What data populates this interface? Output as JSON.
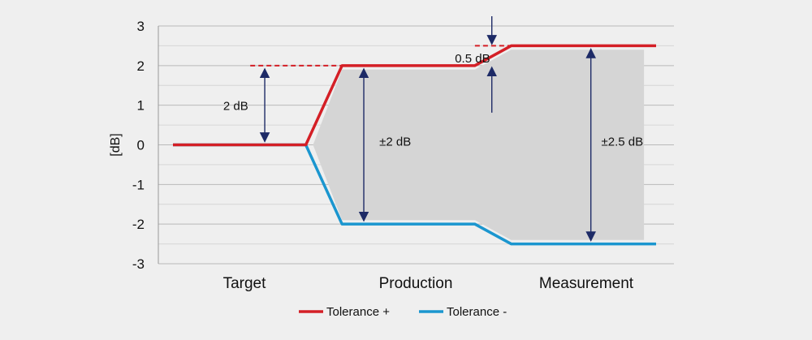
{
  "chart_data": {
    "type": "line",
    "title": "",
    "xlabel": "",
    "ylabel": "[dB]",
    "ylim": [
      -3,
      3
    ],
    "yticks": [
      3,
      2,
      1,
      0,
      -1,
      -2,
      -3
    ],
    "grid": true,
    "legend_position": "bottom-center",
    "categories": [
      "Target",
      "Production",
      "Measurement"
    ],
    "x_domain": [
      0,
      3
    ],
    "series": [
      {
        "name": "Tolerance +",
        "color": "#d41f26",
        "x": [
          0,
          0.55,
          0.7,
          1.25,
          1.4,
          2.0
        ],
        "y": [
          0,
          0,
          2,
          2,
          2.5,
          2.5
        ]
      },
      {
        "name": "Tolerance -",
        "color": "#1b96cf",
        "x": [
          0,
          0.55,
          0.7,
          1.25,
          1.4,
          2.0
        ],
        "y": [
          0,
          0,
          -2,
          -2,
          -2.5,
          -2.5
        ]
      }
    ],
    "shaded_band": {
      "color": "#d5d5d5",
      "upper": {
        "x": [
          0.58,
          0.7,
          1.25,
          1.4,
          1.95
        ],
        "y": [
          0,
          1.9,
          1.9,
          2.4,
          2.4
        ]
      },
      "lower": {
        "x": [
          0.58,
          0.7,
          1.25,
          1.4,
          1.95
        ],
        "y": [
          0,
          -1.9,
          -1.9,
          -2.4,
          -2.4
        ]
      }
    },
    "reference_lines": [
      {
        "x": [
          0.32,
          0.7
        ],
        "y": 2,
        "color": "#d41f26",
        "style": "dashed"
      },
      {
        "x": [
          1.25,
          1.4
        ],
        "y": 2.5,
        "color": "#d41f26",
        "style": "dashed"
      }
    ],
    "annotations": [
      {
        "label": "2 dB",
        "x": 0.38,
        "from": 0,
        "to": 2,
        "type": "double-arrow",
        "label_x": 0.26,
        "label_y": 1
      },
      {
        "label": "±2 dB",
        "x": 0.79,
        "from": -2,
        "to": 2,
        "type": "double-arrow",
        "label_x": 0.92,
        "label_y": 0.1
      },
      {
        "label": "±2.5 dB",
        "x": 1.73,
        "from": -2.5,
        "to": 2.5,
        "type": "double-arrow",
        "label_x": 1.86,
        "label_y": 0.1
      },
      {
        "label": "0.5 dB",
        "x": 1.32,
        "from": 2,
        "to": 2.5,
        "type": "inward-arrows",
        "label_x": 1.24,
        "label_y": 2.2
      }
    ],
    "colors": {
      "axis": "#999999",
      "grid": "#b9b9b9",
      "minor_grid": "#d6d6d6",
      "arrow": "#1d2a66"
    }
  }
}
